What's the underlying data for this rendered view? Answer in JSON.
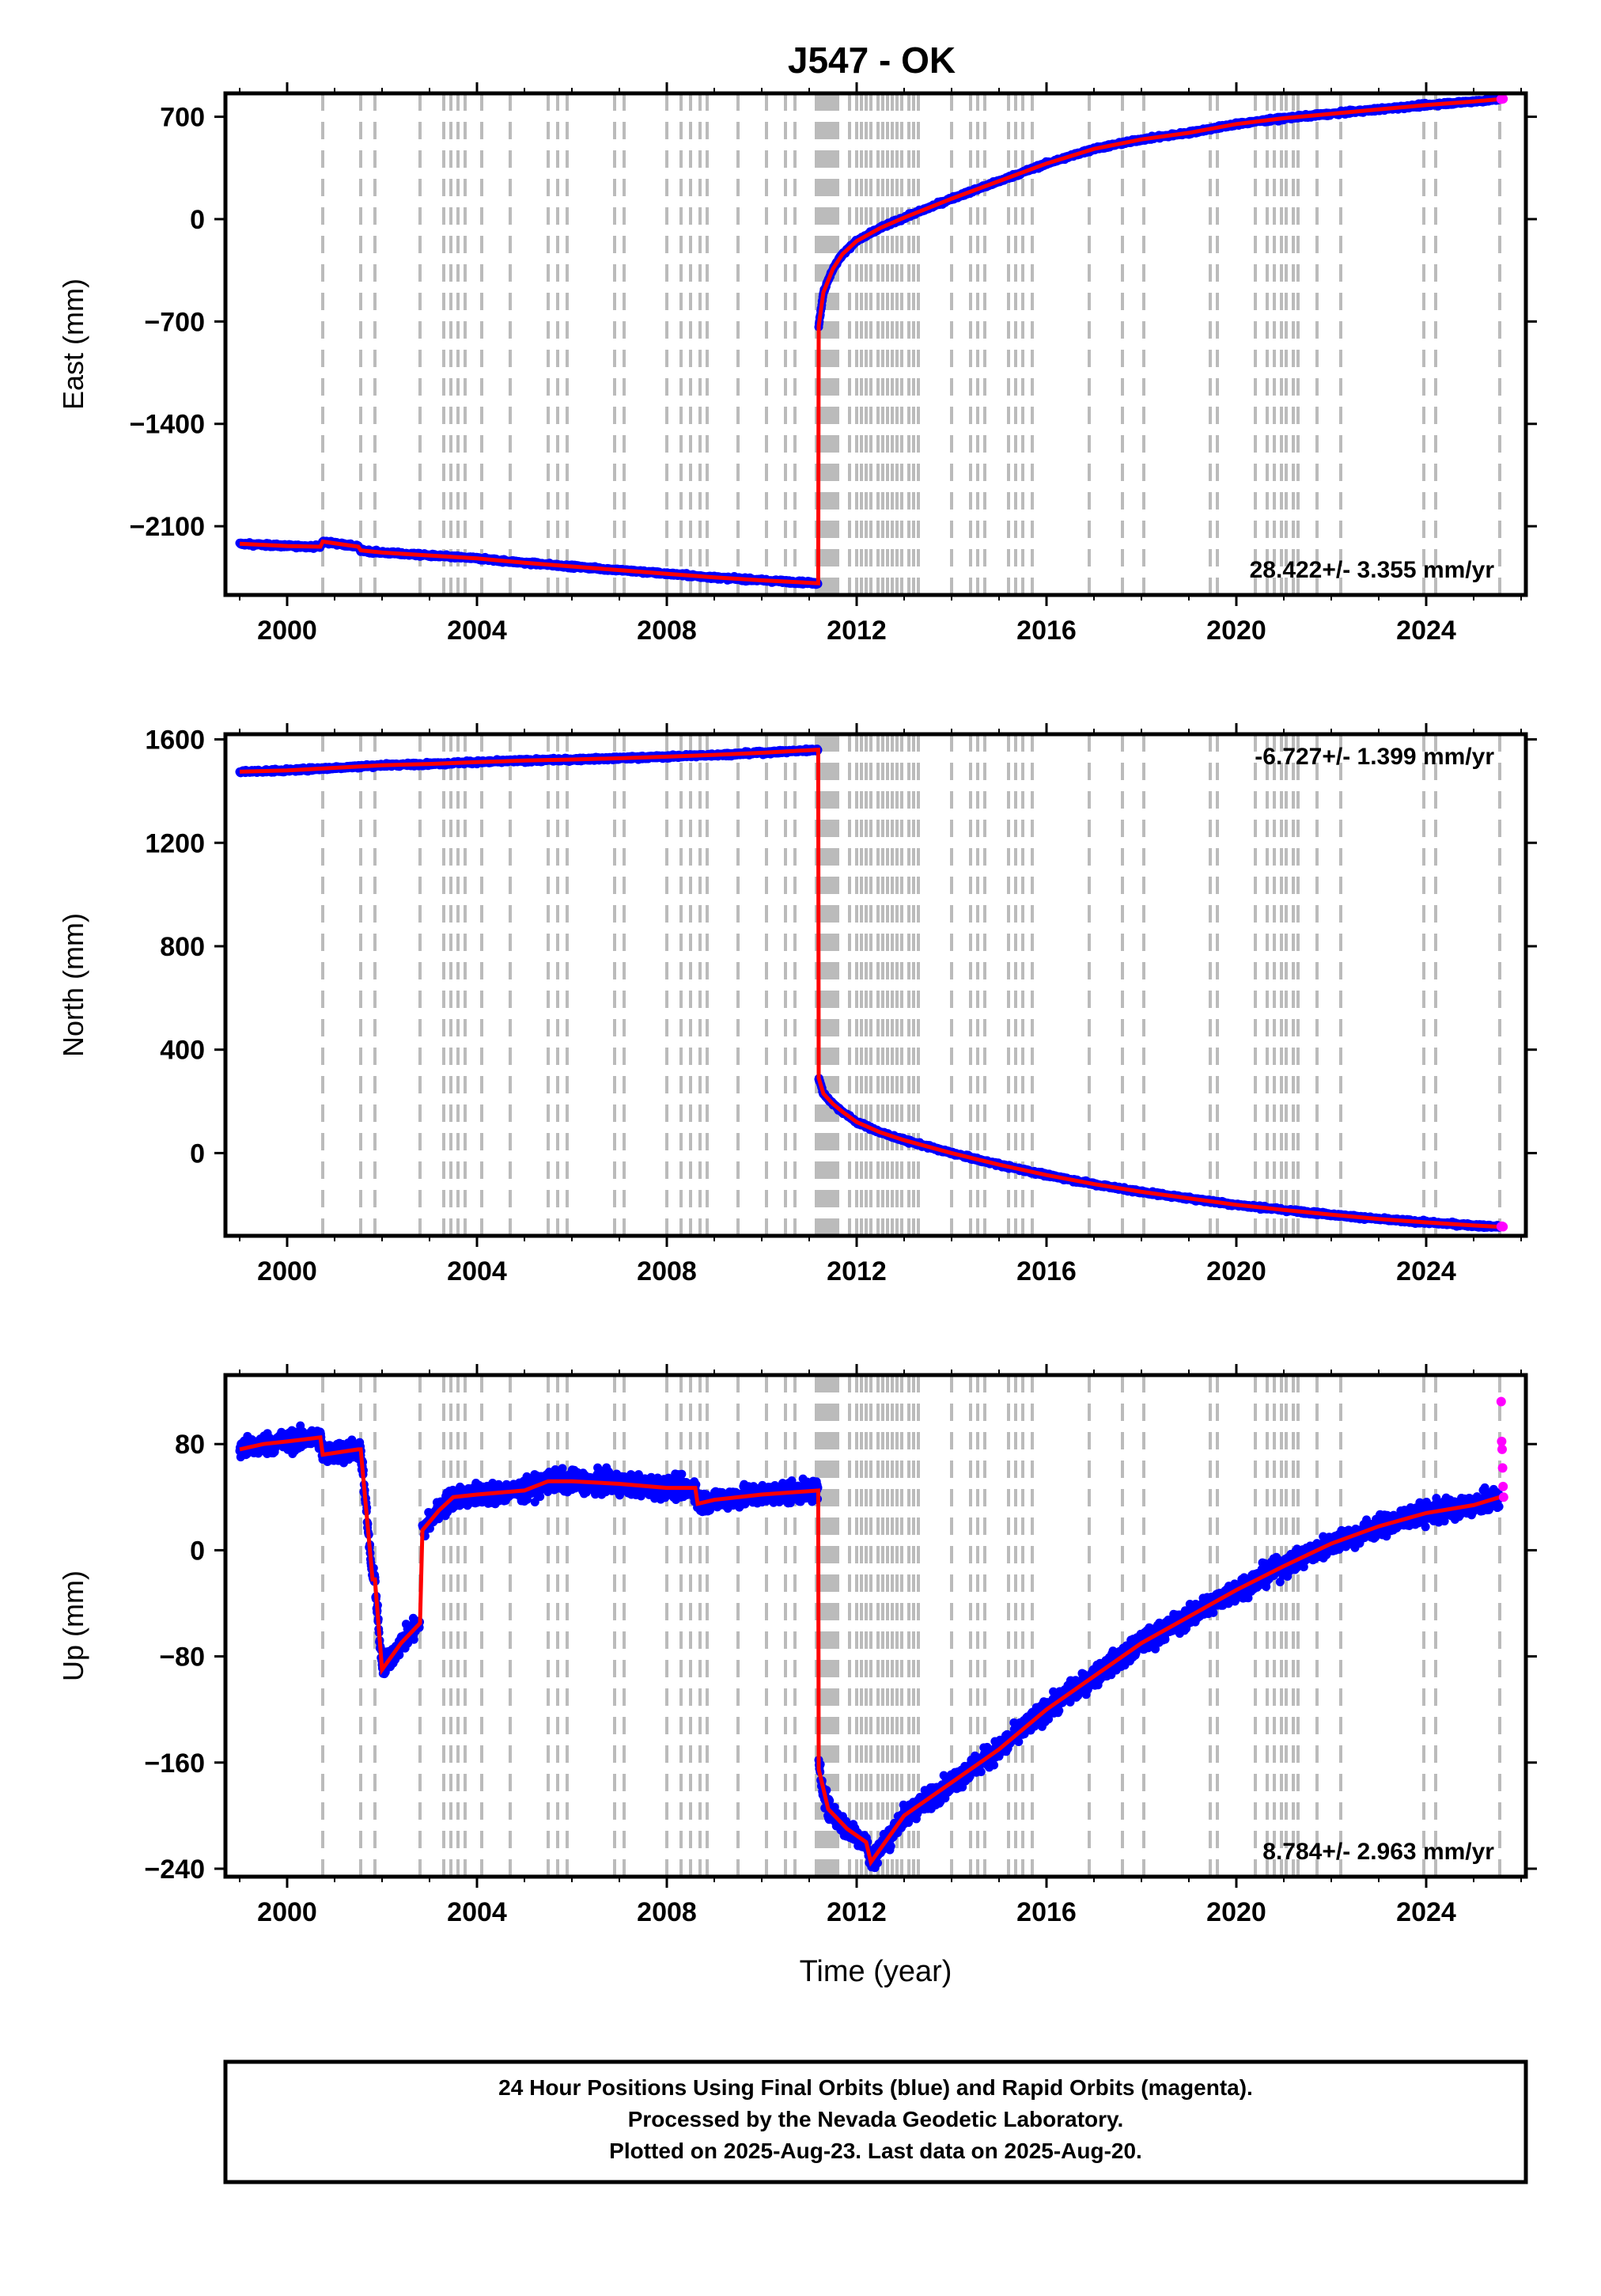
{
  "title": "J547 - OK",
  "colors": {
    "final_orbits": "#0000ff",
    "rapid_orbits": "#ff00ff",
    "model_fit": "#ff0000",
    "event_lines": "#bbbbbb",
    "frame": "#000000"
  },
  "chart_data": [
    {
      "type": "scatter",
      "panel": "east",
      "ylabel": "East (mm)",
      "xlabel": "",
      "xlim": [
        1998.7,
        2026.1
      ],
      "ylim": [
        -2570,
        860
      ],
      "xticks": [
        2000,
        2004,
        2008,
        2012,
        2016,
        2020,
        2024
      ],
      "yticks": [
        -2100,
        -1400,
        -700,
        0,
        700
      ],
      "ytick_labels": [
        "−2100",
        "−1400",
        "−700",
        "0",
        "700"
      ],
      "rate_label": "28.422+/- 3.355 mm/yr",
      "rate_position": "bottom-right",
      "series": [
        {
          "name": "Final Orbits",
          "color": "#0000ff",
          "x": [
            1999.0,
            2000.0,
            2000.7,
            2000.75,
            2001.5,
            2001.55,
            2002.0,
            2003.0,
            2004.0,
            2005.0,
            2006.0,
            2007.0,
            2008.0,
            2009.0,
            2010.0,
            2011.19,
            2011.2,
            2011.3,
            2011.5,
            2011.7,
            2012.0,
            2012.5,
            2013.0,
            2014.0,
            2015.0,
            2016.0,
            2017.0,
            2018.0,
            2019.0,
            2020.0,
            2021.0,
            2022.0,
            2023.0,
            2024.0,
            2025.0,
            2025.55
          ],
          "y": [
            -2220,
            -2235,
            -2240,
            -2205,
            -2240,
            -2265,
            -2280,
            -2300,
            -2320,
            -2350,
            -2375,
            -2400,
            -2425,
            -2450,
            -2470,
            -2490,
            -730,
            -500,
            -340,
            -240,
            -150,
            -60,
            10,
            140,
            260,
            380,
            480,
            545,
            590,
            650,
            690,
            720,
            750,
            780,
            805,
            820
          ]
        },
        {
          "name": "Rapid Orbits",
          "color": "#ff00ff",
          "x": [
            2025.58,
            2025.6,
            2025.62
          ],
          "y": [
            820,
            822,
            823
          ]
        }
      ]
    },
    {
      "type": "scatter",
      "panel": "north",
      "ylabel": "North (mm)",
      "xlabel": "",
      "xlim": [
        1998.7,
        2026.1
      ],
      "ylim": [
        -320,
        1620
      ],
      "xticks": [
        2000,
        2004,
        2008,
        2012,
        2016,
        2020,
        2024
      ],
      "yticks": [
        0,
        400,
        800,
        1200,
        1600
      ],
      "ytick_labels": [
        "0",
        "400",
        "800",
        "1200",
        "1600"
      ],
      "rate_label": "-6.727+/- 1.399 mm/yr",
      "rate_position": "top-right",
      "series": [
        {
          "name": "Final Orbits",
          "color": "#0000ff",
          "x": [
            1999.0,
            2000.0,
            2001.0,
            2002.0,
            2003.0,
            2004.0,
            2005.0,
            2006.0,
            2007.0,
            2008.0,
            2009.0,
            2010.0,
            2011.19,
            2011.2,
            2011.3,
            2011.5,
            2011.7,
            2012.0,
            2012.5,
            2013.0,
            2014.0,
            2015.0,
            2016.0,
            2017.0,
            2018.0,
            2019.0,
            2020.0,
            2021.0,
            2022.0,
            2023.0,
            2024.0,
            2025.0,
            2025.55
          ],
          "y": [
            1475,
            1480,
            1490,
            1500,
            1505,
            1512,
            1518,
            1522,
            1527,
            1533,
            1540,
            1548,
            1560,
            290,
            230,
            190,
            160,
            120,
            80,
            50,
            0,
            -45,
            -85,
            -120,
            -150,
            -175,
            -200,
            -220,
            -238,
            -255,
            -268,
            -280,
            -285
          ]
        },
        {
          "name": "Rapid Orbits",
          "color": "#ff00ff",
          "x": [
            2025.58,
            2025.6,
            2025.62
          ],
          "y": [
            -284,
            -283,
            -285
          ]
        }
      ]
    },
    {
      "type": "scatter",
      "panel": "up",
      "ylabel": "Up (mm)",
      "xlabel": "Time (year)",
      "xlim": [
        1998.7,
        2026.1
      ],
      "ylim": [
        -246,
        132
      ],
      "xticks": [
        2000,
        2004,
        2008,
        2012,
        2016,
        2020,
        2024
      ],
      "yticks": [
        -240,
        -160,
        -80,
        0,
        80
      ],
      "ytick_labels": [
        "−240",
        "−160",
        "−80",
        "0",
        "80"
      ],
      "rate_label": "8.784+/- 2.963 mm/yr",
      "rate_position": "bottom-right",
      "series": [
        {
          "name": "Final Orbits",
          "color": "#0000ff",
          "x": [
            1999.0,
            1999.5,
            2000.0,
            2000.7,
            2000.75,
            2001.5,
            2001.55,
            2001.8,
            2001.85,
            2002.0,
            2002.4,
            2002.8,
            2002.85,
            2003.2,
            2003.5,
            2004.0,
            2005.0,
            2005.5,
            2006.0,
            2007.0,
            2008.0,
            2008.6,
            2008.65,
            2009.0,
            2010.0,
            2011.19,
            2011.2,
            2011.4,
            2011.8,
            2012.2,
            2012.3,
            2013.0,
            2014.0,
            2015.0,
            2016.0,
            2017.0,
            2018.0,
            2019.0,
            2020.0,
            2021.0,
            2022.0,
            2023.0,
            2024.0,
            2025.0,
            2025.55
          ],
          "y": [
            76,
            80,
            82,
            85,
            72,
            76,
            76,
            -22,
            -22,
            -90,
            -70,
            -55,
            15,
            30,
            40,
            42,
            45,
            52,
            52,
            50,
            47,
            47,
            35,
            38,
            42,
            45,
            -165,
            -195,
            -210,
            -220,
            -235,
            -200,
            -175,
            -150,
            -120,
            -95,
            -70,
            -50,
            -30,
            -12,
            5,
            18,
            28,
            34,
            40
          ]
        },
        {
          "name": "Rapid Orbits",
          "color": "#ff00ff",
          "x": [
            2025.58,
            2025.59,
            2025.6,
            2025.61,
            2025.62,
            2025.63
          ],
          "y": [
            112,
            82,
            76,
            62,
            48,
            40
          ]
        }
      ]
    }
  ],
  "event_lines": [
    2000.75,
    2001.55,
    2001.85,
    2002.8,
    2003.3,
    2003.45,
    2003.6,
    2003.75,
    2004.1,
    2004.7,
    2005.5,
    2005.7,
    2005.9,
    2006.9,
    2007.1,
    2008.0,
    2008.3,
    2008.5,
    2008.7,
    2008.85,
    2009.5,
    2010.1,
    2010.5,
    2010.7,
    2011.15,
    2011.2,
    2011.25,
    2011.3,
    2011.35,
    2011.4,
    2011.45,
    2011.5,
    2011.55,
    2011.6,
    2011.85,
    2012.0,
    2012.1,
    2012.2,
    2012.3,
    2012.45,
    2012.55,
    2012.65,
    2012.75,
    2012.85,
    2012.95,
    2013.1,
    2013.2,
    2013.3,
    2014.0,
    2014.4,
    2014.55,
    2014.7,
    2015.2,
    2015.35,
    2015.5,
    2015.7,
    2016.9,
    2017.6,
    2018.05,
    2019.45,
    2019.6,
    2020.4,
    2020.65,
    2020.8,
    2020.95,
    2021.05,
    2021.2,
    2021.3,
    2021.7,
    2022.2,
    2023.95,
    2024.2,
    2025.55
  ],
  "footer": {
    "line1": "24 Hour Positions Using Final Orbits (blue) and Rapid Orbits (magenta).",
    "line2": "Processed by the Nevada Geodetic Laboratory.",
    "line3": "Plotted on 2025-Aug-23. Last data on 2025-Aug-20."
  }
}
